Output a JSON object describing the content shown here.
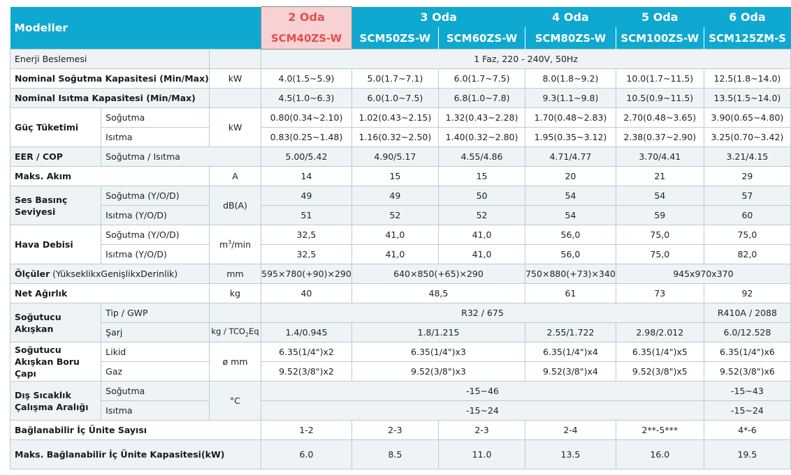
{
  "header": {
    "models_label": "Modeller",
    "rooms": [
      "2 Oda",
      "3 Oda",
      "4 Oda",
      "5 Oda",
      "6 Oda"
    ],
    "models": [
      "SCM40ZS-W",
      "SCM50ZS-W",
      "SCM60ZS-W",
      "SCM80ZS-W",
      "SCM100ZS-W",
      "SCM125ZM-S"
    ]
  },
  "rows": {
    "power_supply": {
      "label": "Enerji Beslemesi",
      "value": "1 Faz, 220 - 240V, 50Hz"
    },
    "cooling_capacity": {
      "label": "Nominal Soğutma Kapasitesi (Min/Max)",
      "unit": "kW",
      "values": [
        "4.0(1.5~5.9)",
        "5.0(1.7~7.1)",
        "6.0(1.7~7.5)",
        "8.0(1.8~9.2)",
        "10.0(1.7~11.5)",
        "12.5(1.8~14.0)"
      ]
    },
    "heating_capacity": {
      "label": "Nominal Isıtma Kapasitesi (Min/Max)",
      "values": [
        "4.5(1.0~6.3)",
        "6.0(1.0~7.5)",
        "6.8(1.0~7.8)",
        "9.3(1.1~9.8)",
        "10.5(0.9~11.5)",
        "13.5(1.5~14.0)"
      ]
    },
    "power_consumption": {
      "label": "Güç Tüketimi",
      "unit": "kW",
      "cooling_label": "Soğutma",
      "heating_label": "Isıtma",
      "cooling": [
        "0.80(0.34~2.10)",
        "1.02(0.43~2.15)",
        "1.32(0.43~2.28)",
        "1.70(0.48~2.83)",
        "2.70(0.48~3.65)",
        "3.90(0.65~4.80)"
      ],
      "heating": [
        "0.83(0.25~1.48)",
        "1.16(0.32~2.50)",
        "1.40(0.32~2.80)",
        "1.95(0.35~3.12)",
        "2.38(0.37~2.90)",
        "3.25(0.70~3.42)"
      ]
    },
    "eer_cop": {
      "label": "EER /  COP",
      "sub": "Soğutma / Isıtma",
      "values": [
        "5.00/5.42",
        "4.90/5.17",
        "4.55/4.86",
        "4.71/4.77",
        "3.70/4.41",
        "3.21/4.15"
      ]
    },
    "max_current": {
      "label": "Maks. Akım",
      "unit": "A",
      "values": [
        "14",
        "15",
        "15",
        "20",
        "21",
        "29"
      ]
    },
    "sound": {
      "label": "Ses Basınç Seviyesi",
      "unit": "dB(A)",
      "cooling_label": "Soğutma (Y/O/D)",
      "heating_label": "Isıtma (Y/O/D)",
      "cooling": [
        "49",
        "49",
        "50",
        "54",
        "54",
        "57"
      ],
      "heating": [
        "51",
        "52",
        "52",
        "54",
        "59",
        "60"
      ]
    },
    "airflow": {
      "label": "Hava Debisi",
      "unit_main": "m",
      "unit_sup": "3",
      "unit_tail": "/min",
      "cooling_label": "Soğutma (Y/O/D)",
      "heating_label": "Isıtma (Y/O/D)",
      "cooling": [
        "32,5",
        "41,0",
        "41,0",
        "56,0",
        "75,0",
        "75,0"
      ],
      "heating": [
        "32,5",
        "41,0",
        "41,0",
        "56,0",
        "75,0",
        "82,0"
      ]
    },
    "dimensions": {
      "label_bold": "Ölçüler",
      "label_rest": " (YükseklikxGenişlikxDerinlik)",
      "unit": "mm",
      "values": [
        "595×780(+90)×290",
        "640×850(+65)×290",
        "750×880(+73)×340",
        "945x970x370"
      ]
    },
    "net_weight": {
      "label": "Net Ağırlık",
      "unit": "kg",
      "values": [
        "40",
        "48,5",
        "61",
        "73",
        "92"
      ]
    },
    "refrigerant": {
      "label": "Soğutucu Akışkan",
      "type_label": "Tip / GWP",
      "type_values": [
        "R32 / 675",
        "R410A / 2088"
      ],
      "charge_label": "Şarj",
      "charge_unit_main": "kg / TCO",
      "charge_unit_sub": "2",
      "charge_unit_tail": "Eq",
      "charge_values": [
        "1.4/0.945",
        "1.8/1.215",
        "2.55/1.722",
        "2.98/2.012",
        "6.0/12.528"
      ]
    },
    "pipe": {
      "label": "Soğutucu Akışkan Boru Çapı",
      "unit": "ø mm",
      "liquid_label": "Likid",
      "gas_label": "Gaz",
      "liquid": [
        "6.35(1/4\")x2",
        "6.35(1/4\")x3",
        "6.35(1/4\")x4",
        "6.35(1/4\")x5",
        "6.35(1/4\")x6"
      ],
      "gas": [
        "9.52(3/8\")x2",
        "9.52(3/8\")x3",
        "9.52(3/8\")x4",
        "9.52(3/8\")x5",
        "9.52(3/8\")x6"
      ]
    },
    "outdoor_range": {
      "label": "Dış Sıcaklık Çalışma Aralığı",
      "unit": "°C",
      "cooling_label": "Soğutma",
      "heating_label": "Isıtma",
      "cooling": [
        "-15~46",
        "-15~43"
      ],
      "heating": [
        "-15~24",
        "-15~24"
      ]
    },
    "connectable_units": {
      "label": "Bağlanabilir İç Ünite Sayısı",
      "values": [
        "1-2",
        "2-3",
        "2-3",
        "2-4",
        "2**-5***",
        "4*-6"
      ]
    },
    "max_capacity": {
      "label": "Maks. Bağlanabilir İç Ünite Kapasitesi(kW)",
      "values": [
        "6.0",
        "8.5",
        "11.0",
        "13.5",
        "16.0",
        "19.5"
      ]
    }
  }
}
